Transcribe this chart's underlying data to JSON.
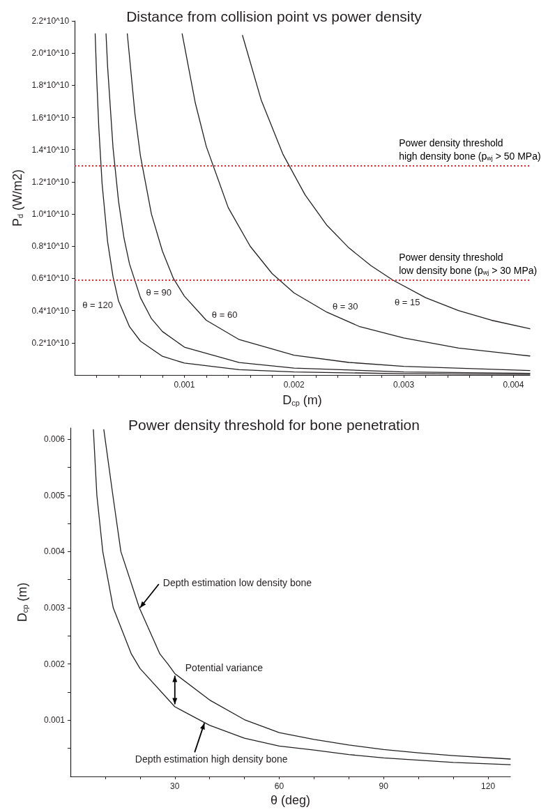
{
  "chart_data": [
    {
      "type": "line",
      "title": "Distance from collision point vs power density",
      "xlabel": "D$_{cp}$ (m)",
      "ylabel": "P$_{d}$ (W/m2)",
      "xlim": [
        0,
        0.00415
      ],
      "xticks": [
        {
          "value": 0.0002,
          "label": null
        },
        {
          "value": 0.0004,
          "label": null
        },
        {
          "value": 0.0006,
          "label": null
        },
        {
          "value": 0.0008,
          "label": null
        },
        0.001,
        {
          "value": 0.0012,
          "label": null
        },
        {
          "value": 0.0014,
          "label": null
        },
        {
          "value": 0.0016,
          "label": null
        },
        {
          "value": 0.0018,
          "label": null
        },
        0.002,
        {
          "value": 0.0022,
          "label": null
        },
        {
          "value": 0.0024,
          "label": null
        },
        {
          "value": 0.0026,
          "label": null
        },
        {
          "value": 0.0028,
          "label": null
        },
        0.003,
        {
          "value": 0.0032,
          "label": null
        },
        {
          "value": 0.0034,
          "label": null
        },
        {
          "value": 0.0036,
          "label": null
        },
        {
          "value": 0.0038,
          "label": null
        },
        0.004
      ],
      "ylim": [
        0,
        22000000000
      ],
      "yticks": [
        {
          "value": 2000000000,
          "label": "0.2*10^10"
        },
        {
          "value": 4000000000,
          "label": "0.4*10^10"
        },
        {
          "value": 6000000000,
          "label": "0.6*10^10"
        },
        {
          "value": 8000000000,
          "label": "0.8*10^10"
        },
        {
          "value": 10000000000,
          "label": "1.0*10^10"
        },
        {
          "value": 12000000000,
          "label": "1.2*10^10"
        },
        {
          "value": 14000000000,
          "label": "1.4*10^10"
        },
        {
          "value": 16000000000,
          "label": "1.6*10^10"
        },
        {
          "value": 18000000000,
          "label": "1.8*10^10"
        },
        {
          "value": 20000000000,
          "label": "2.0*10^10"
        },
        {
          "value": 22000000000,
          "label": "2.2*10^10"
        }
      ],
      "grid": false,
      "legend": false,
      "series": [
        {
          "name": "θ = 120",
          "color": "#231f20",
          "x": [
            0.000187,
            0.0002,
            0.00022,
            0.00025,
            0.0003,
            0.00035,
            0.0004,
            0.0005,
            0.0006,
            0.0008,
            0.001,
            0.0015,
            0.002,
            0.003,
            0.00415
          ],
          "values": [
            21200000000,
            18600000000,
            15400000000,
            11900000000,
            8300000000,
            6100000000,
            4600000000,
            3000000000,
            2100000000,
            1160000000,
            740000000,
            330000000,
            190000000,
            80000000,
            40000000
          ]
        },
        {
          "name": "θ = 90",
          "color": "#231f20",
          "x": [
            0.000286,
            0.0003,
            0.00035,
            0.0004,
            0.00045,
            0.0005,
            0.0006,
            0.0007,
            0.0008,
            0.001,
            0.0015,
            0.002,
            0.003,
            0.00415
          ],
          "values": [
            21200000000,
            19200000000,
            14100000000,
            10800000000,
            8500000000,
            6900000000,
            4800000000,
            3500000000,
            2700000000,
            1730000000,
            770000000,
            430000000,
            190000000,
            100000000
          ]
        },
        {
          "name": "θ = 60",
          "color": "#231f20",
          "x": [
            0.00048,
            0.00055,
            0.0006,
            0.0007,
            0.0008,
            0.0009,
            0.001,
            0.0012,
            0.0015,
            0.002,
            0.0025,
            0.003,
            0.00415
          ],
          "values": [
            21200000000,
            16200000000,
            13600000000,
            10000000000,
            7700000000,
            6000000000,
            4900000000,
            3400000000,
            2200000000,
            1230000000,
            780000000,
            540000000,
            280000000
          ]
        },
        {
          "name": "θ = 30",
          "color": "#231f20",
          "x": [
            0.00098,
            0.0011,
            0.0012,
            0.0014,
            0.0016,
            0.0018,
            0.002,
            0.0023,
            0.0026,
            0.003,
            0.0035,
            0.00415
          ],
          "values": [
            21200000000,
            16900000000,
            14200000000,
            10400000000,
            8000000000,
            6300000000,
            5100000000,
            3900000000,
            3000000000,
            2300000000,
            1670000000,
            1180000000
          ]
        },
        {
          "name": "θ = 15",
          "color": "#231f20",
          "x": [
            0.00153,
            0.0017,
            0.0019,
            0.0021,
            0.0023,
            0.0025,
            0.0027,
            0.0029,
            0.0032,
            0.0035,
            0.0038,
            0.00415
          ],
          "values": [
            21100000000,
            17100000000,
            13700000000,
            11200000000,
            9300000000,
            7900000000,
            6800000000,
            5900000000,
            4800000000,
            4000000000,
            3400000000,
            2870000000
          ]
        }
      ],
      "ref_lines": [
        {
          "axis": "y",
          "value": 13000000000,
          "label": "Power density threshold\nhigh density bone (p$_{wj}$ > 50 MPa)",
          "color": "#e8202a",
          "line_style": "dotted"
        },
        {
          "axis": "y",
          "value": 5900000000,
          "label": "Power density threshold\nlow density bone (p$_{wj}$ > 30 MPa)",
          "color": "#e8202a",
          "line_style": "dotted"
        }
      ]
    },
    {
      "type": "line",
      "title": "Power density threshold for bone penetration",
      "xlabel": "θ (deg)",
      "ylabel": "D$_{cp}$ (m)",
      "xlim": [
        0,
        126.4
      ],
      "xticks": [
        {
          "value": 10,
          "label": null
        },
        {
          "value": 20,
          "label": null
        },
        30,
        {
          "value": 40,
          "label": null
        },
        {
          "value": 50,
          "label": null
        },
        60,
        {
          "value": 70,
          "label": null
        },
        {
          "value": 80,
          "label": null
        },
        90,
        {
          "value": 100,
          "label": null
        },
        {
          "value": 110,
          "label": null
        },
        120
      ],
      "ylim": [
        0,
        0.0062
      ],
      "yticks": [
        {
          "value": 0.0005,
          "label": null
        },
        0.001,
        {
          "value": 0.0015,
          "label": null
        },
        0.002,
        {
          "value": 0.0025,
          "label": null
        },
        0.003,
        {
          "value": 0.0035,
          "label": null
        },
        0.004,
        {
          "value": 0.0045,
          "label": null
        },
        0.005,
        {
          "value": 0.0055,
          "label": null
        },
        0.006
      ],
      "grid": false,
      "legend": false,
      "series": [
        {
          "color": "#231f20",
          "x": [
            9.6,
            12.2,
            14.5,
            19.8,
            25.7,
            28,
            30,
            40,
            50,
            60,
            70,
            80,
            90,
            100,
            110,
            126.4
          ],
          "values": [
            0.00617,
            0.005,
            0.004,
            0.003,
            0.00218,
            0.002,
            0.00183,
            0.00136,
            0.00101,
            0.00078,
            0.00066,
            0.00056,
            0.00048,
            0.00042,
            0.00037,
            0.00031
          ]
        },
        {
          "color": "#231f20",
          "x": [
            6.6,
            7.6,
            9.3,
            12.3,
            17.5,
            20,
            30,
            40,
            50,
            60,
            70,
            80,
            90,
            100,
            110,
            126.4
          ],
          "values": [
            0.00617,
            0.005,
            0.004,
            0.003,
            0.00218,
            0.00192,
            0.00124,
            0.00091,
            0.00068,
            0.00054,
            0.00047,
            0.00039,
            0.00033,
            0.00029,
            0.00025,
            0.00021
          ]
        }
      ],
      "annotations": [
        {
          "text": "Depth estimation low density bone",
          "x": 20,
          "y": 0.003
        },
        {
          "text": "Potential variance",
          "x": 30,
          "y": 0.00183
        },
        {
          "text": "Depth estimation high density bone",
          "x": 38.5,
          "y": 0.00095
        }
      ]
    }
  ]
}
